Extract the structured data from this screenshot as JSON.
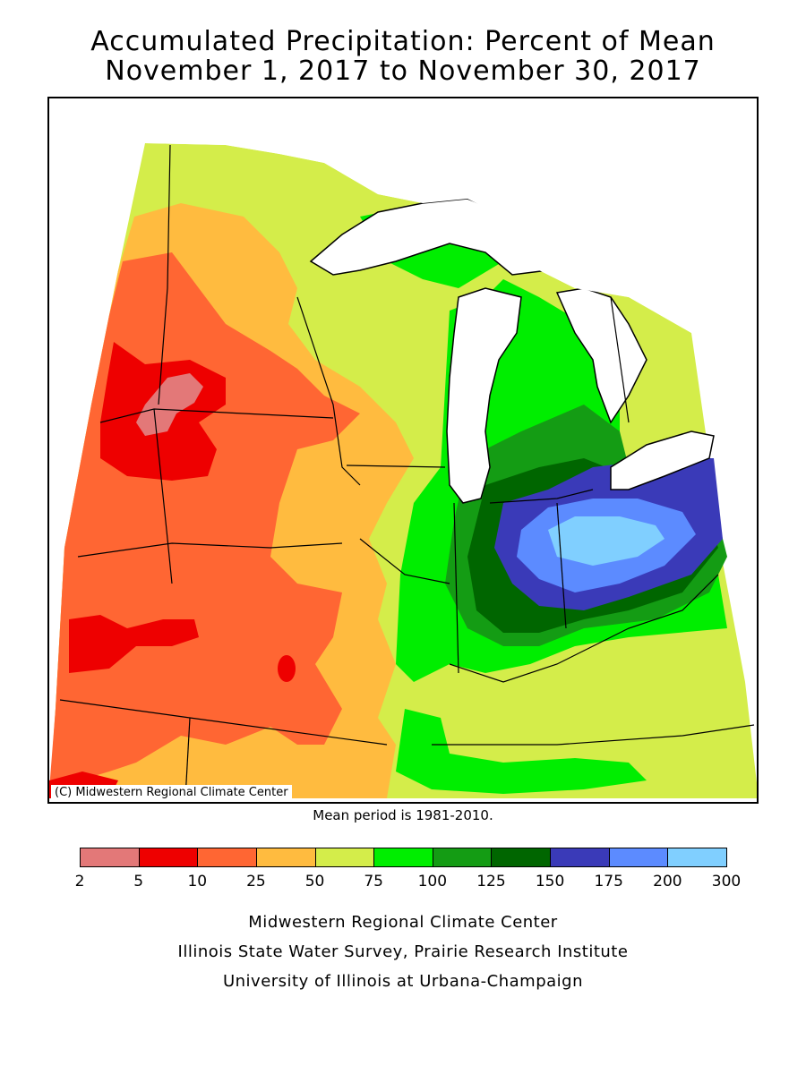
{
  "header": {
    "title_line1": "Accumulated Precipitation: Percent of Mean",
    "title_line2": "November 1, 2017 to November 30, 2017"
  },
  "map": {
    "copyright": "(C) Midwestern Regional Climate Center",
    "mean_period": "Mean period is 1981-2010."
  },
  "legend": {
    "ticks": [
      "2",
      "5",
      "10",
      "25",
      "50",
      "75",
      "100",
      "125",
      "150",
      "175",
      "200",
      "300"
    ],
    "bins": [
      {
        "range": "2-5",
        "color": "#e37878"
      },
      {
        "range": "5-10",
        "color": "#ee0000"
      },
      {
        "range": "10-25",
        "color": "#ff6633"
      },
      {
        "range": "25-50",
        "color": "#ffbb3f"
      },
      {
        "range": "50-75",
        "color": "#d4ed4a"
      },
      {
        "range": "75-100",
        "color": "#00ee00"
      },
      {
        "range": "100-125",
        "color": "#149c14"
      },
      {
        "range": "125-150",
        "color": "#006600"
      },
      {
        "range": "150-175",
        "color": "#3a3ab8"
      },
      {
        "range": "175-200",
        "color": "#5c8bff"
      },
      {
        "range": "200-300",
        "color": "#80cfff"
      }
    ]
  },
  "footer": {
    "line1": "Midwestern Regional Climate Center",
    "line2": "Illinois State Water Survey, Prairie Research Institute",
    "line3": "University of Illinois at Urbana-Champaign"
  }
}
